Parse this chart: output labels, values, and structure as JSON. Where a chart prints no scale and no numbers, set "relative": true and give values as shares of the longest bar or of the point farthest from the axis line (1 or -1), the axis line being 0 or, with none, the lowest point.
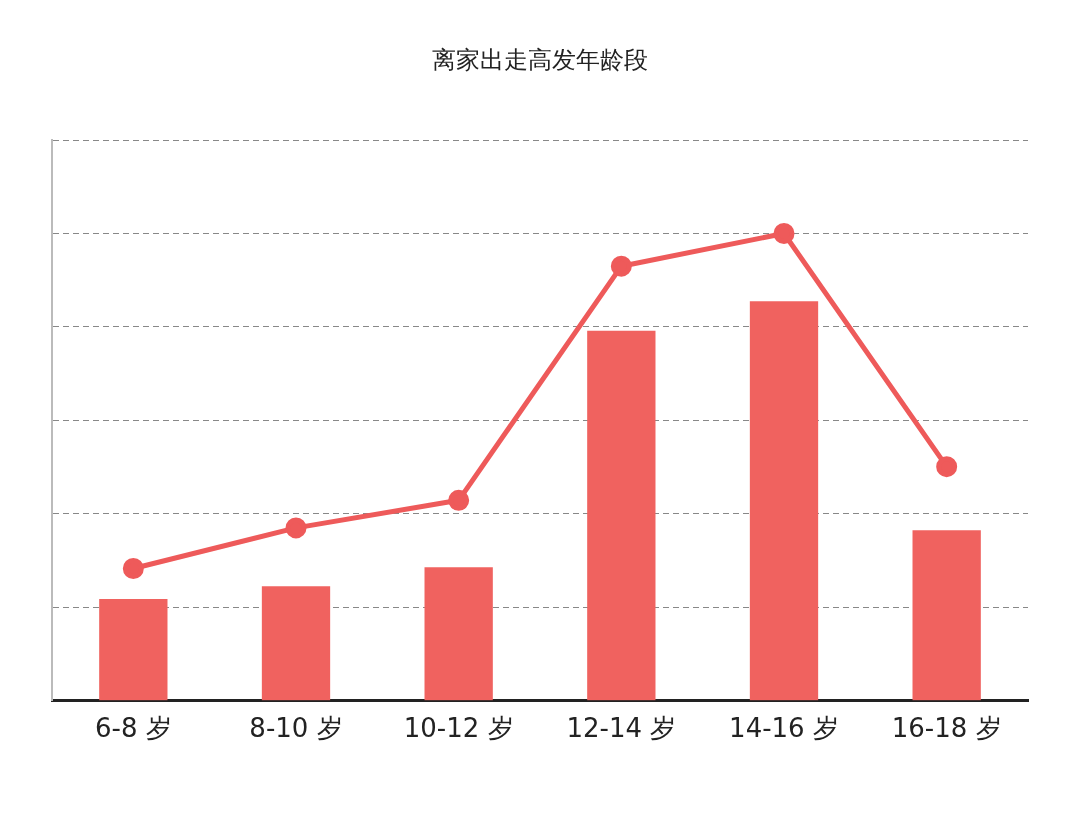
{
  "chart_data": {
    "type": "bar",
    "title": "离家出走高发年龄段",
    "relative": true,
    "grid": "y",
    "legend": false,
    "categories": [
      "6-8 岁",
      "8-10 岁",
      "10-12 岁",
      "12-14 岁",
      "14-16 岁",
      "16-18 岁"
    ],
    "series": [
      {
        "color": "#f0625f",
        "values": [
          0.218,
          0.245,
          0.286,
          0.792,
          0.855,
          0.365
        ]
      },
      {
        "type": "line",
        "color": "#ee5a5a",
        "marker": "circle",
        "values": [
          0.283,
          0.37,
          0.429,
          0.93,
          1,
          0.501
        ]
      }
    ]
  }
}
